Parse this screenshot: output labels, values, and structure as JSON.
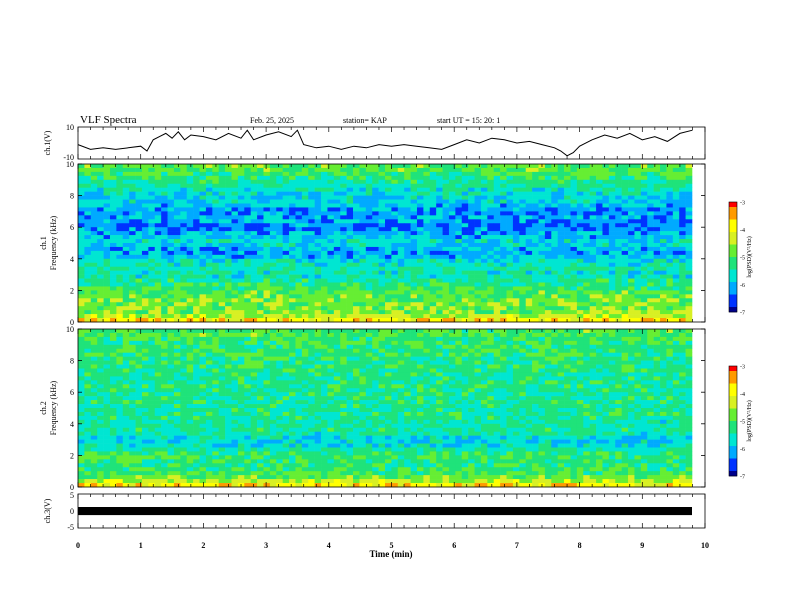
{
  "header": {
    "title": "VLF Spectra",
    "date": "Feb. 25, 2025",
    "station": "station= KAP",
    "start": "start  UT =   15: 20: 1"
  },
  "chart_data": [
    {
      "type": "line",
      "name": "ch1-waveform",
      "ylabel": "ch.1(V)",
      "ylim": [
        -10,
        10
      ],
      "yticks": [
        "10",
        "-10"
      ],
      "xlim": [
        0,
        10
      ],
      "x": [
        0,
        0.2,
        0.4,
        0.6,
        0.8,
        1.0,
        1.1,
        1.2,
        1.3,
        1.4,
        1.5,
        1.6,
        1.7,
        1.8,
        2.0,
        2.2,
        2.4,
        2.6,
        2.7,
        2.8,
        3.0,
        3.2,
        3.4,
        3.5,
        3.6,
        3.8,
        4.0,
        4.2,
        4.4,
        4.6,
        4.8,
        5.0,
        5.2,
        5.4,
        5.6,
        5.8,
        6.0,
        6.2,
        6.4,
        6.6,
        6.8,
        7.0,
        7.2,
        7.4,
        7.6,
        7.7,
        7.8,
        7.9,
        8.0,
        8.2,
        8.4,
        8.6,
        8.8,
        9.0,
        9.2,
        9.4,
        9.6,
        9.8
      ],
      "y": [
        -1,
        -4,
        -3,
        -4,
        -3,
        -2,
        -5,
        2,
        4,
        6,
        3,
        7,
        2,
        5,
        4,
        2,
        6,
        3,
        8,
        2,
        5,
        7,
        4,
        8,
        -1,
        -3,
        -2,
        -4,
        -2,
        -3,
        -1,
        -2,
        -1,
        -2,
        -3,
        -4,
        -1,
        2,
        0,
        3,
        2,
        0,
        1,
        -1,
        -3,
        -5,
        -8,
        -6,
        -2,
        2,
        5,
        3,
        6,
        2,
        4,
        1,
        6,
        8
      ]
    },
    {
      "type": "heatmap",
      "name": "ch1-spectrogram",
      "ylabel": "ch.1\nFrequency (kHz)",
      "ylim": [
        0,
        10
      ],
      "yticks": [
        "0",
        "2",
        "4",
        "6",
        "8",
        "10"
      ],
      "xlim": [
        0,
        10
      ],
      "colorbar": {
        "label": "log(PSD)(V²/Hz)",
        "range": [
          -7,
          -3
        ],
        "ticks": [
          "-3",
          "-4",
          "-5",
          "-6",
          "-7"
        ]
      },
      "freq_levels": [
        [
          0,
          -3.6
        ],
        [
          0.5,
          -4.7
        ],
        [
          1.0,
          -4.8
        ],
        [
          1.5,
          -4.8
        ],
        [
          2.0,
          -5.0
        ],
        [
          2.5,
          -5.3
        ],
        [
          3.0,
          -5.6
        ],
        [
          3.5,
          -5.4
        ],
        [
          4.0,
          -5.9
        ],
        [
          4.5,
          -6.1
        ],
        [
          5.0,
          -5.7
        ],
        [
          5.5,
          -6.0
        ],
        [
          6.0,
          -6.4
        ],
        [
          6.5,
          -6.0
        ],
        [
          7.0,
          -6.3
        ],
        [
          7.5,
          -5.8
        ],
        [
          8.0,
          -5.8
        ],
        [
          8.5,
          -5.5
        ],
        [
          9.0,
          -5.3
        ],
        [
          9.5,
          -5.0
        ],
        [
          10.0,
          -4.9
        ]
      ]
    },
    {
      "type": "heatmap",
      "name": "ch2-spectrogram",
      "ylabel": "ch.2\nFrequency (kHz)",
      "ylim": [
        0,
        10
      ],
      "yticks": [
        "0",
        "2",
        "4",
        "6",
        "8",
        "10"
      ],
      "xlim": [
        0,
        10
      ],
      "colorbar": {
        "label": "log(PSD)(V²/Hz)",
        "range": [
          -7,
          -3
        ],
        "ticks": [
          "-3",
          "-4",
          "-5",
          "-6",
          "-7"
        ]
      },
      "freq_levels": [
        [
          0,
          -3.6
        ],
        [
          0.5,
          -4.8
        ],
        [
          1.0,
          -5.1
        ],
        [
          1.5,
          -5.3
        ],
        [
          2.0,
          -5.0
        ],
        [
          2.5,
          -5.6
        ],
        [
          3.0,
          -5.9
        ],
        [
          3.5,
          -5.3
        ],
        [
          4.0,
          -5.5
        ],
        [
          4.5,
          -5.3
        ],
        [
          5.0,
          -5.4
        ],
        [
          5.5,
          -5.3
        ],
        [
          6.0,
          -5.4
        ],
        [
          6.5,
          -5.3
        ],
        [
          7.0,
          -5.4
        ],
        [
          7.5,
          -5.2
        ],
        [
          8.0,
          -5.3
        ],
        [
          8.5,
          -5.1
        ],
        [
          9.0,
          -5.2
        ],
        [
          9.5,
          -5.0
        ],
        [
          10.0,
          -5.0
        ]
      ]
    },
    {
      "type": "line",
      "name": "ch3-waveform",
      "ylabel": "ch.3(V)",
      "ylim": [
        -5,
        5
      ],
      "yticks": [
        "5",
        "0",
        "-5"
      ],
      "xlim": [
        0,
        10
      ],
      "band": [
        -0.6,
        0.6
      ],
      "xlabel": "Time  (min)",
      "xticks": [
        "0",
        "1",
        "2",
        "3",
        "4",
        "5",
        "6",
        "7",
        "8",
        "9",
        "10"
      ]
    }
  ],
  "colors": {
    "colormap": [
      "#00008b",
      "#0033ff",
      "#00aaff",
      "#00e6d2",
      "#1fe37a",
      "#66ee33",
      "#d8f023",
      "#ffff00",
      "#ff9a00",
      "#ff0000",
      "#ffffff"
    ]
  }
}
